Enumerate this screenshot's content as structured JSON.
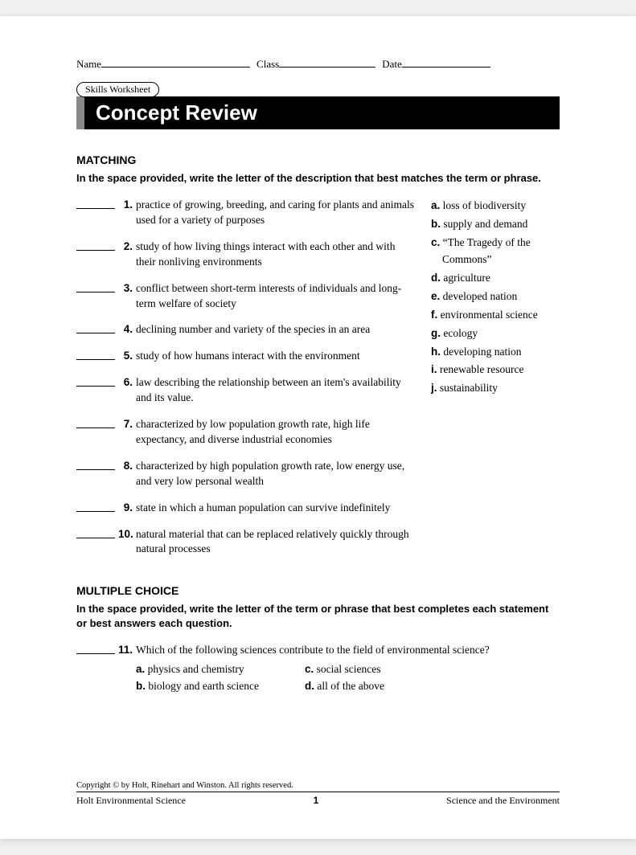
{
  "header": {
    "name_label": "Name",
    "class_label": "Class",
    "date_label": "Date",
    "skills_tag": "Skills Worksheet",
    "title": "Concept Review"
  },
  "matching": {
    "heading": "MATCHING",
    "instructions": "In the space provided, write the letter of the description that best matches the term or phrase.",
    "questions": [
      {
        "num": "1.",
        "text": "practice of growing, breeding, and caring for plants and animals used for a variety of purposes"
      },
      {
        "num": "2.",
        "text": "study of how living things interact with each other and with their nonliving environments"
      },
      {
        "num": "3.",
        "text": "conflict between short-term interests of individuals and long-term welfare of society"
      },
      {
        "num": "4.",
        "text": "declining number and variety of the species in an area"
      },
      {
        "num": "5.",
        "text": "study of how humans interact with the environment"
      },
      {
        "num": "6.",
        "text": "law describing the relationship between an item's availability and its value."
      },
      {
        "num": "7.",
        "text": "characterized by low population growth rate, high life expectancy, and diverse industrial economies"
      },
      {
        "num": "8.",
        "text": "characterized by high population growth rate, low energy use, and very low personal wealth"
      },
      {
        "num": "9.",
        "text": "state in which a human population can survive indefinitely"
      },
      {
        "num": "10.",
        "text": "natural material that can be replaced relatively quickly through natural processes"
      }
    ],
    "options": [
      {
        "letter": "a.",
        "text": "loss of biodiversity"
      },
      {
        "letter": "b.",
        "text": "supply and demand"
      },
      {
        "letter": "c.",
        "text": "“The Tragedy of the Commons”"
      },
      {
        "letter": "d.",
        "text": "agriculture"
      },
      {
        "letter": "e.",
        "text": "developed nation"
      },
      {
        "letter": "f.",
        "text": "environmental science"
      },
      {
        "letter": "g.",
        "text": "ecology"
      },
      {
        "letter": "h.",
        "text": "developing nation"
      },
      {
        "letter": "i.",
        "text": "renewable resource"
      },
      {
        "letter": "j.",
        "text": "sustainability"
      }
    ]
  },
  "multiple_choice": {
    "heading": "MULTIPLE CHOICE",
    "instructions": "In the space provided, write the letter of the term or phrase that best completes each statement or best answers each question.",
    "questions": [
      {
        "num": "11.",
        "text": "Which of the following sciences contribute to the field of environmental science?",
        "choices": [
          {
            "letter": "a.",
            "text": "physics and chemistry"
          },
          {
            "letter": "b.",
            "text": "biology and earth science"
          },
          {
            "letter": "c.",
            "text": "social sciences"
          },
          {
            "letter": "d.",
            "text": "all of the above"
          }
        ]
      }
    ]
  },
  "footer": {
    "copyright": "Copyright © by Holt, Rinehart and Winston. All rights reserved.",
    "left": "Holt Environmental Science",
    "page_num": "1",
    "right": "Science and the Environment"
  }
}
